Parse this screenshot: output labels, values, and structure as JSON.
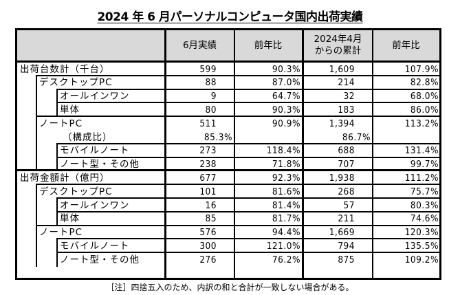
{
  "title": "2024 年 6 月パーソナルコンピュータ国内出荷実績",
  "table": {
    "headers": [
      "",
      "6月実績",
      "前年比",
      "2024年4月\nからの累計",
      "前年比"
    ],
    "header_labels": {
      "blank": "",
      "june_actual": "6月実績",
      "yoy1": "前年比",
      "cumulative_line1": "2024年4月",
      "cumulative_line2": "からの累計",
      "yoy2": "前年比"
    },
    "rows": [
      {
        "label": "出荷台数計（千台）",
        "level": 0,
        "june": "599",
        "yoy": "90.3%",
        "cum": "1,609",
        "cum_yoy": "107.9%"
      },
      {
        "label": "デスクトップPC",
        "level": 1,
        "june": "88",
        "yoy": "87.0%",
        "cum": "214",
        "cum_yoy": "82.8%"
      },
      {
        "label": "オールインワン",
        "level": 2,
        "june": "9",
        "yoy": "64.7%",
        "cum": "32",
        "cum_yoy": "68.0%"
      },
      {
        "label": "単体",
        "level": 2,
        "june": "80",
        "yoy": "90.3%",
        "cum": "183",
        "cum_yoy": "86.0%"
      },
      {
        "label": "ノートPC",
        "level": 1,
        "june": "511",
        "yoy": "90.9%",
        "cum": "1,394",
        "cum_yoy": "113.2%",
        "sub_label": "（構成比）",
        "sub_june": "85.3%",
        "sub_cum": "86.7%"
      },
      {
        "label": "モバイルノート",
        "level": 2,
        "june": "273",
        "yoy": "118.4%",
        "cum": "688",
        "cum_yoy": "131.4%"
      },
      {
        "label": "ノート型・その他",
        "level": 2,
        "june": "238",
        "yoy": "71.8%",
        "cum": "707",
        "cum_yoy": "99.7%"
      },
      {
        "label": "出荷金額計（億円）",
        "level": 0,
        "june": "677",
        "yoy": "92.3%",
        "cum": "1,938",
        "cum_yoy": "111.2%"
      },
      {
        "label": "デスクトップPC",
        "level": 1,
        "june": "101",
        "yoy": "81.6%",
        "cum": "268",
        "cum_yoy": "75.7%"
      },
      {
        "label": "オールインワン",
        "level": 2,
        "june": "16",
        "yoy": "81.4%",
        "cum": "57",
        "cum_yoy": "80.3%"
      },
      {
        "label": "単体",
        "level": 2,
        "june": "85",
        "yoy": "81.7%",
        "cum": "211",
        "cum_yoy": "74.6%"
      },
      {
        "label": "ノートPC",
        "level": 1,
        "june": "576",
        "yoy": "94.4%",
        "cum": "1,669",
        "cum_yoy": "120.3%"
      },
      {
        "label": "モバイルノート",
        "level": 2,
        "june": "300",
        "yoy": "121.0%",
        "cum": "794",
        "cum_yoy": "135.5%"
      },
      {
        "label": "ノート型・その他",
        "level": 2,
        "june": "276",
        "yoy": "76.2%",
        "cum": "875",
        "cum_yoy": "109.2%"
      }
    ]
  },
  "note": "［注］四捨五入のため、内訳の和と合計が一致しない場合がある。",
  "colors": {
    "header_bg": "#d9d9d9",
    "border": "#000000"
  }
}
